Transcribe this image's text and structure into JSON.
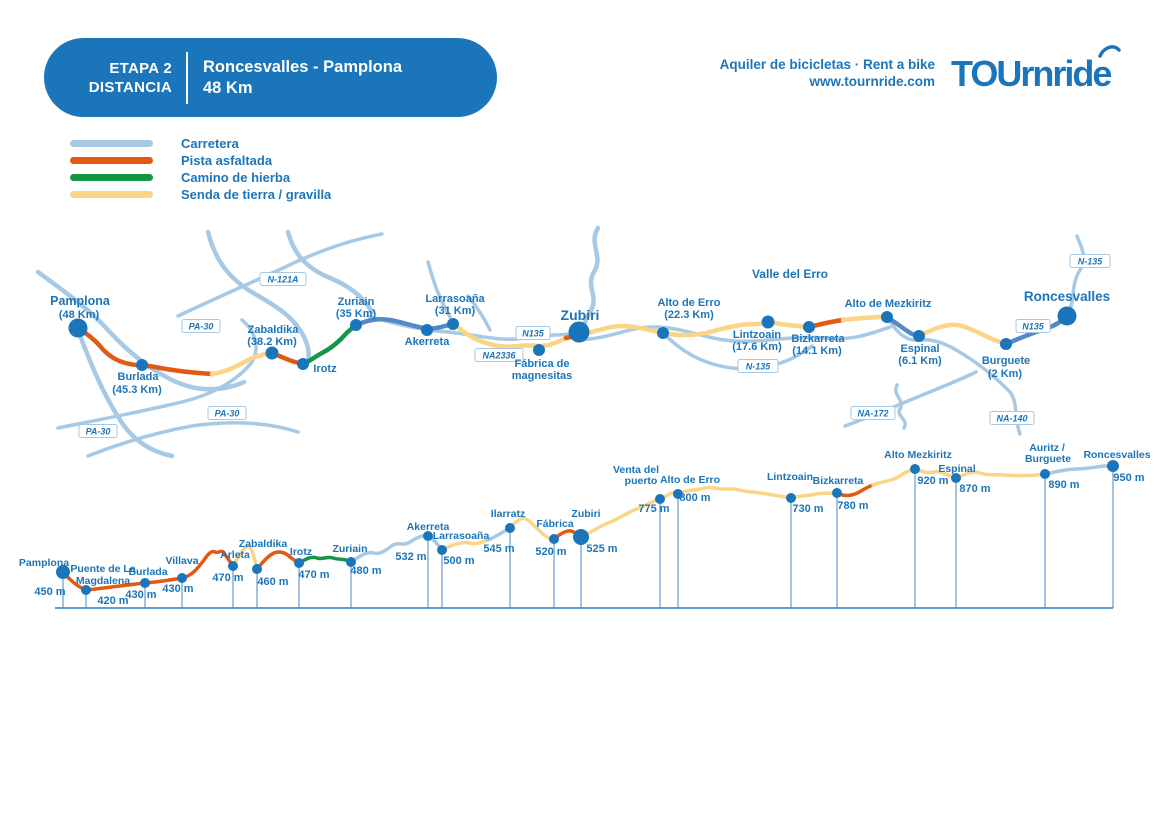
{
  "header": {
    "stage": "ETAPA 2",
    "stage_sub": "DISTANCIA",
    "title": "Roncesvalles - Pamplona",
    "distance": "48 Km"
  },
  "branding": {
    "tagline": "Aquiler de bicicletas · Rent a bike",
    "website": "www.tournride.com",
    "logo_text": "TOUrnride"
  },
  "legend": {
    "items": [
      {
        "label": "Carretera",
        "color": "#a6c9e5"
      },
      {
        "label": "Pista asfaltada",
        "color": "#e25a12"
      },
      {
        "label": "Camino de hierba",
        "color": "#169447"
      },
      {
        "label": "Senda de tierra / gravilla",
        "color": "#fad586"
      }
    ]
  },
  "colors": {
    "primary_blue": "#1b75bb",
    "carretera": "#a6c9e5",
    "carretera_map": "#5588c6",
    "pista": "#e25a12",
    "hierba": "#169447",
    "senda": "#fad586",
    "river": "#a6c9e5",
    "dot": "#1b75bb"
  },
  "map": {
    "region_label": "Valle del Erro",
    "towns": [
      {
        "id": "pamplona",
        "name": "Pamplona",
        "distance": "(48 Km)"
      },
      {
        "id": "burlada",
        "name": "Burlada",
        "distance": "(45.3 Km)"
      },
      {
        "id": "zabaldika",
        "name": "Zabaldika",
        "distance": "(38.2 Km)"
      },
      {
        "id": "irotz",
        "name": "Irotz"
      },
      {
        "id": "zuriain",
        "name": "Zuriain",
        "distance": "(35 Km)"
      },
      {
        "id": "akerreta",
        "name": "Akerreta"
      },
      {
        "id": "larrasoana",
        "name": "Larrasoaña",
        "distance": "(31 Km)"
      },
      {
        "id": "fabrica",
        "name": "Fábrica de",
        "name2": "magnesitas"
      },
      {
        "id": "zubiri",
        "name": "Zubiri"
      },
      {
        "id": "alto-de-erro",
        "name": "Alto de Erro",
        "distance": "(22.3 Km)"
      },
      {
        "id": "lintzoain",
        "name": "Lintzoain",
        "distance": "(17.6 Km)"
      },
      {
        "id": "bizkarreta",
        "name": "Bizkarreta",
        "distance": "(14.1 Km)"
      },
      {
        "id": "alto-de-mezkiritz",
        "name": "Alto de Mezkiritz"
      },
      {
        "id": "espinal",
        "name": "Espinal",
        "distance": "(6.1 Km)"
      },
      {
        "id": "burguete",
        "name": "Burguete",
        "distance": "(2 Km)"
      },
      {
        "id": "roncesvalles",
        "name": "Roncesvalles"
      }
    ],
    "road_badges": [
      "N-121A",
      "PA-30",
      "PA-30",
      "PA-30",
      "N135",
      "NA2336",
      "N-135",
      "NA-172",
      "N135",
      "NA-140",
      "N-135"
    ]
  },
  "profile": {
    "points": [
      {
        "id": "pamplona",
        "name": "Pamplona",
        "elevation": "450 m",
        "elevation_m": 450
      },
      {
        "id": "puente-magdalena",
        "name": "Puente de La",
        "name2": "Magdalena",
        "elevation": "420 m",
        "elevation_m": 420
      },
      {
        "id": "burlada",
        "name": "Burlada",
        "elevation": "430 m",
        "elevation_m": 430
      },
      {
        "id": "villava",
        "name": "Villava",
        "elevation": "430 m",
        "elevation_m": 430
      },
      {
        "id": "arleta",
        "name": "Arleta",
        "elevation": "470 m",
        "elevation_m": 470
      },
      {
        "id": "zabaldika",
        "name": "Zabaldika",
        "elevation": "460 m",
        "elevation_m": 460
      },
      {
        "id": "irotz",
        "name": "Irotz",
        "elevation": "470 m",
        "elevation_m": 470
      },
      {
        "id": "zuriain",
        "name": "Zuriain",
        "elevation": "480 m",
        "elevation_m": 480
      },
      {
        "id": "akerreta",
        "name": "Akerreta",
        "elevation": "532 m",
        "elevation_m": 532
      },
      {
        "id": "larrasoana",
        "name": "Larrasoaña",
        "elevation": "500 m",
        "elevation_m": 500
      },
      {
        "id": "ilarratz",
        "name": "Ilarratz",
        "elevation": "545 m",
        "elevation_m": 545
      },
      {
        "id": "fabrica",
        "name": "Fábrica",
        "elevation": "520 m",
        "elevation_m": 520
      },
      {
        "id": "zubiri",
        "name": "Zubiri",
        "elevation": "525 m",
        "elevation_m": 525
      },
      {
        "id": "venta-del-puerto",
        "name": "Venta del",
        "name2": "puerto",
        "elevation": "775 m",
        "elevation_m": 775
      },
      {
        "id": "alto-de-erro",
        "name": "Alto de Erro",
        "elevation": "800 m",
        "elevation_m": 800
      },
      {
        "id": "lintzoain",
        "name": "Lintzoain",
        "elevation": "730 m",
        "elevation_m": 730
      },
      {
        "id": "bizkarreta",
        "name": "Bizkarreta",
        "elevation": "780 m",
        "elevation_m": 780
      },
      {
        "id": "alto-mezkiritz",
        "name": "Alto Mezkiritz",
        "elevation": "920 m",
        "elevation_m": 920
      },
      {
        "id": "espinal",
        "name": "Espinal",
        "elevation": "870 m",
        "elevation_m": 870
      },
      {
        "id": "auritz-burguete",
        "name": "Auritz /",
        "name2": "Burguete",
        "elevation": "890 m",
        "elevation_m": 890
      },
      {
        "id": "roncesvalles",
        "name": "Roncesvalles",
        "elevation": "950 m",
        "elevation_m": 950
      }
    ]
  }
}
